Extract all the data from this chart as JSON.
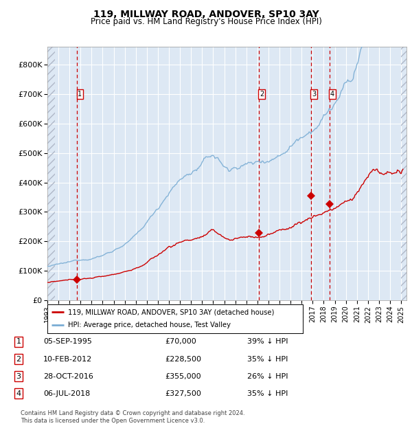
{
  "title": "119, MILLWAY ROAD, ANDOVER, SP10 3AY",
  "subtitle": "Price paid vs. HM Land Registry's House Price Index (HPI)",
  "title_fontsize": 10,
  "subtitle_fontsize": 8.5,
  "xlim": [
    1993.0,
    2025.5
  ],
  "ylim": [
    0,
    860000
  ],
  "yticks": [
    0,
    100000,
    200000,
    300000,
    400000,
    500000,
    600000,
    700000,
    800000
  ],
  "ytick_labels": [
    "£0",
    "£100K",
    "£200K",
    "£300K",
    "£400K",
    "£500K",
    "£600K",
    "£700K",
    "£800K"
  ],
  "xticks": [
    1993,
    1994,
    1995,
    1996,
    1997,
    1998,
    1999,
    2000,
    2001,
    2002,
    2003,
    2004,
    2005,
    2006,
    2007,
    2008,
    2009,
    2010,
    2011,
    2012,
    2013,
    2014,
    2015,
    2016,
    2017,
    2018,
    2019,
    2020,
    2021,
    2022,
    2023,
    2024,
    2025
  ],
  "hpi_color": "#7aadd4",
  "price_color": "#cc0000",
  "vline_color": "#cc0000",
  "bg_color": "#dde8f4",
  "grid_color": "#ffffff",
  "transactions": [
    {
      "num": 1,
      "date_x": 1995.68,
      "price": 70000,
      "date_str": "05-SEP-1995",
      "price_str": "£70,000",
      "pct_str": "39% ↓ HPI"
    },
    {
      "num": 2,
      "date_x": 2012.11,
      "price": 228500,
      "date_str": "10-FEB-2012",
      "price_str": "£228,500",
      "pct_str": "35% ↓ HPI"
    },
    {
      "num": 3,
      "date_x": 2016.83,
      "price": 355000,
      "date_str": "28-OCT-2016",
      "price_str": "£355,000",
      "pct_str": "26% ↓ HPI"
    },
    {
      "num": 4,
      "date_x": 2018.51,
      "price": 327500,
      "date_str": "06-JUL-2018",
      "price_str": "£327,500",
      "pct_str": "35% ↓ HPI"
    }
  ],
  "legend_line1": "119, MILLWAY ROAD, ANDOVER, SP10 3AY (detached house)",
  "legend_line2": "HPI: Average price, detached house, Test Valley",
  "footer": "Contains HM Land Registry data © Crown copyright and database right 2024.\nThis data is licensed under the Open Government Licence v3.0."
}
